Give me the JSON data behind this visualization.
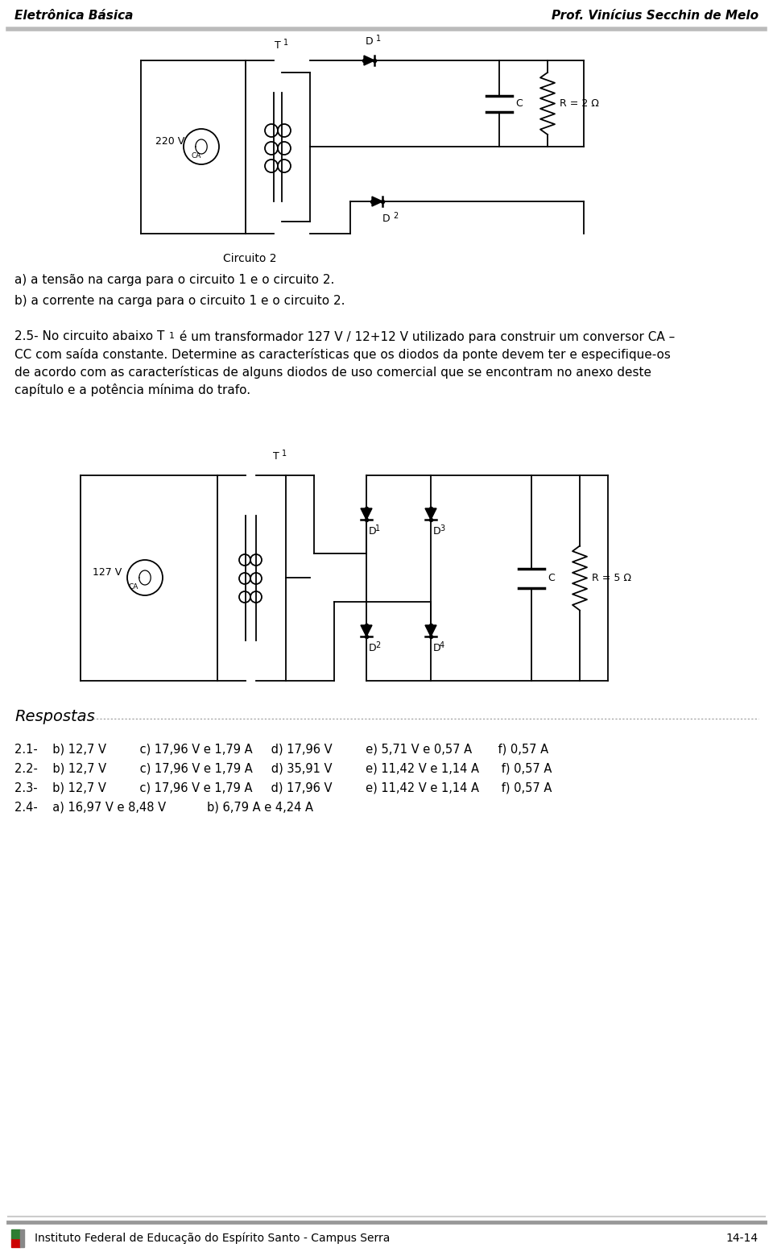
{
  "header_left": "Eletrônica Básica",
  "header_right": "Prof. Vinícius Secchin de Melo",
  "footer_text": "Instituto Federal de Educação do Espírito Santo - Campus Serra",
  "footer_page": "14-14",
  "para1": "a) a tensão na carga para o circuito 1 e o circuito 2.",
  "para2": "b) a corrente na carga para o circuito 1 e o circuito 2.",
  "p25_prefix": "2.5- No circuito abaixo T",
  "p25_mid": " é um transformador 127 V / 12+12 V utilizado para construir um conversor CA –",
  "p25_line2": "CC com saída constante. Determine as características que os diodos da ponte devem ter e especifique-os",
  "p25_line3": "de acordo com as características de alguns diodos de uso comercial que se encontram no anexo deste",
  "p25_line4": "capítulo e a potência mínima do trafo.",
  "circ1_label": "Circuito 2",
  "circ1_src": "220 V",
  "circ1_src_sub": "CA",
  "circ1_R": "R = 2 Ω",
  "circ1_C": "C",
  "circ2_src": "127 V",
  "circ2_src_sub": "CA",
  "circ2_R": "R = 5 Ω",
  "circ2_C": "C",
  "resp_title": "Respostas",
  "resp_2_1": "2.1-    b) 12,7 V         c) 17,96 V e 1,79 A     d) 17,96 V         e) 5,71 V e 0,57 A       f) 0,57 A",
  "resp_2_2": "2.2-    b) 12,7 V         c) 17,96 V e 1,79 A     d) 35,91 V         e) 11,42 V e 1,14 A      f) 0,57 A",
  "resp_2_3": "2.3-    b) 12,7 V         c) 17,96 V e 1,79 A     d) 17,96 V         e) 11,42 V e 1,14 A      f) 0,57 A",
  "resp_2_4": "2.4-    a) 16,97 V e 8,48 V           b) 6,79 A e 4,24 A",
  "bg_color": "#ffffff",
  "col": "#000000",
  "gray": "#aaaaaa"
}
